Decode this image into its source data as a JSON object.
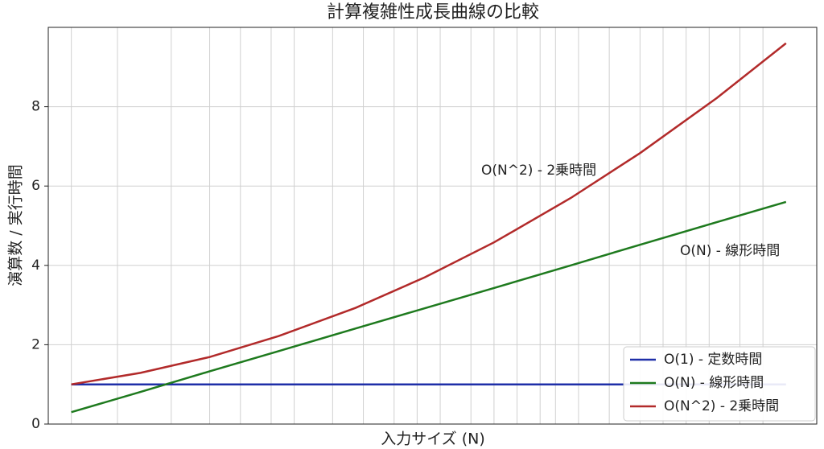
{
  "chart_data": {
    "type": "line",
    "title": "計算複雑性成長曲線の比較",
    "xlabel": "入力サイズ (N)",
    "ylabel": "演算数 / 実行時間",
    "x": [
      3,
      12,
      21,
      30,
      40,
      49,
      58,
      68,
      77,
      87,
      96
    ],
    "series": [
      {
        "name": "O(1) - 定数時間",
        "color": "#1f2fa8",
        "values": [
          1,
          1,
          1,
          1,
          1,
          1,
          1,
          1,
          1,
          1,
          1
        ]
      },
      {
        "name": "O(N) - 線形時間",
        "color": "#1e7a1e",
        "values": [
          0.3,
          0.81,
          1.33,
          1.84,
          2.41,
          2.92,
          3.43,
          4.0,
          4.52,
          5.09,
          5.6
        ]
      },
      {
        "name": "O(N^2) - 2乗時間",
        "color": "#b22a2a",
        "values": [
          1,
          1.29,
          1.69,
          2.22,
          2.93,
          3.7,
          4.58,
          5.7,
          6.83,
          8.22,
          9.6
        ]
      }
    ],
    "annotations": [
      "O(N^2) - 2乗時間",
      "O(N) - 線形時間"
    ],
    "xlim": [
      0,
      100
    ],
    "ylim": [
      0,
      10
    ],
    "xticks": [
      3,
      9,
      16,
      21,
      25,
      29,
      32,
      37,
      41,
      45,
      48,
      51,
      55,
      58,
      61,
      64,
      66,
      69,
      73,
      77,
      80,
      83,
      86,
      90,
      93
    ],
    "yticks": [
      0,
      2,
      4,
      6,
      8
    ],
    "grid": true,
    "legend": "lower right"
  }
}
